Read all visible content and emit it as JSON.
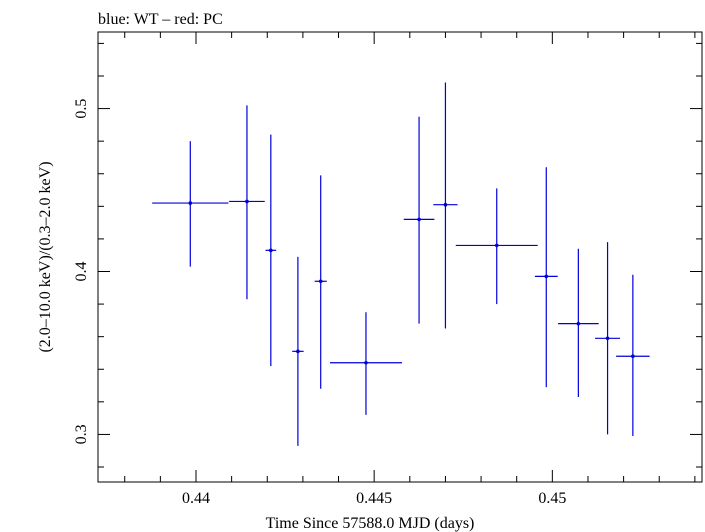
{
  "chart_data": {
    "type": "scatter",
    "title": "blue: WT – red: PC",
    "xlabel": "Time Since 57588.0 MJD (days)",
    "ylabel": "(2.0–10.0 keV)/(0.3–2.0 keV)",
    "xlim": [
      0.43725,
      0.4542
    ],
    "ylim": [
      0.2708,
      0.547
    ],
    "x_ticks": [
      0.44,
      0.445,
      0.45
    ],
    "x_tick_labels": [
      "0.44",
      "0.445",
      "0.45"
    ],
    "y_ticks": [
      0.3,
      0.4,
      0.5
    ],
    "y_tick_labels": [
      "0.3",
      "0.4",
      "0.5"
    ],
    "grid": false,
    "series": [
      {
        "name": "WT",
        "color": "#0000dd",
        "points": [
          {
            "x": 0.43984,
            "xerr": 0.00107,
            "y": 0.442,
            "ylo": 0.403,
            "yhi": 0.48
          },
          {
            "x": 0.44143,
            "xerr": 0.0005,
            "y": 0.443,
            "ylo": 0.383,
            "yhi": 0.502
          },
          {
            "x": 0.4421,
            "xerr": 0.00015,
            "y": 0.413,
            "ylo": 0.342,
            "yhi": 0.484
          },
          {
            "x": 0.44286,
            "xerr": 0.00016,
            "y": 0.351,
            "ylo": 0.293,
            "yhi": 0.409
          },
          {
            "x": 0.4435,
            "xerr": 0.00017,
            "y": 0.394,
            "ylo": 0.328,
            "yhi": 0.459
          },
          {
            "x": 0.44477,
            "xerr": 0.00101,
            "y": 0.344,
            "ylo": 0.312,
            "yhi": 0.375
          },
          {
            "x": 0.44626,
            "xerr": 0.00043,
            "y": 0.432,
            "ylo": 0.368,
            "yhi": 0.495
          },
          {
            "x": 0.447,
            "xerr": 0.00034,
            "y": 0.441,
            "ylo": 0.365,
            "yhi": 0.516
          },
          {
            "x": 0.44844,
            "xerr": 0.00115,
            "y": 0.416,
            "ylo": 0.38,
            "yhi": 0.451
          },
          {
            "x": 0.44983,
            "xerr": 0.00032,
            "y": 0.397,
            "ylo": 0.329,
            "yhi": 0.464
          },
          {
            "x": 0.45073,
            "xerr": 0.00057,
            "y": 0.368,
            "ylo": 0.323,
            "yhi": 0.414
          },
          {
            "x": 0.45155,
            "xerr": 0.00035,
            "y": 0.359,
            "ylo": 0.3,
            "yhi": 0.418
          },
          {
            "x": 0.45226,
            "xerr": 0.00047,
            "y": 0.348,
            "ylo": 0.299,
            "yhi": 0.398
          }
        ]
      }
    ]
  }
}
